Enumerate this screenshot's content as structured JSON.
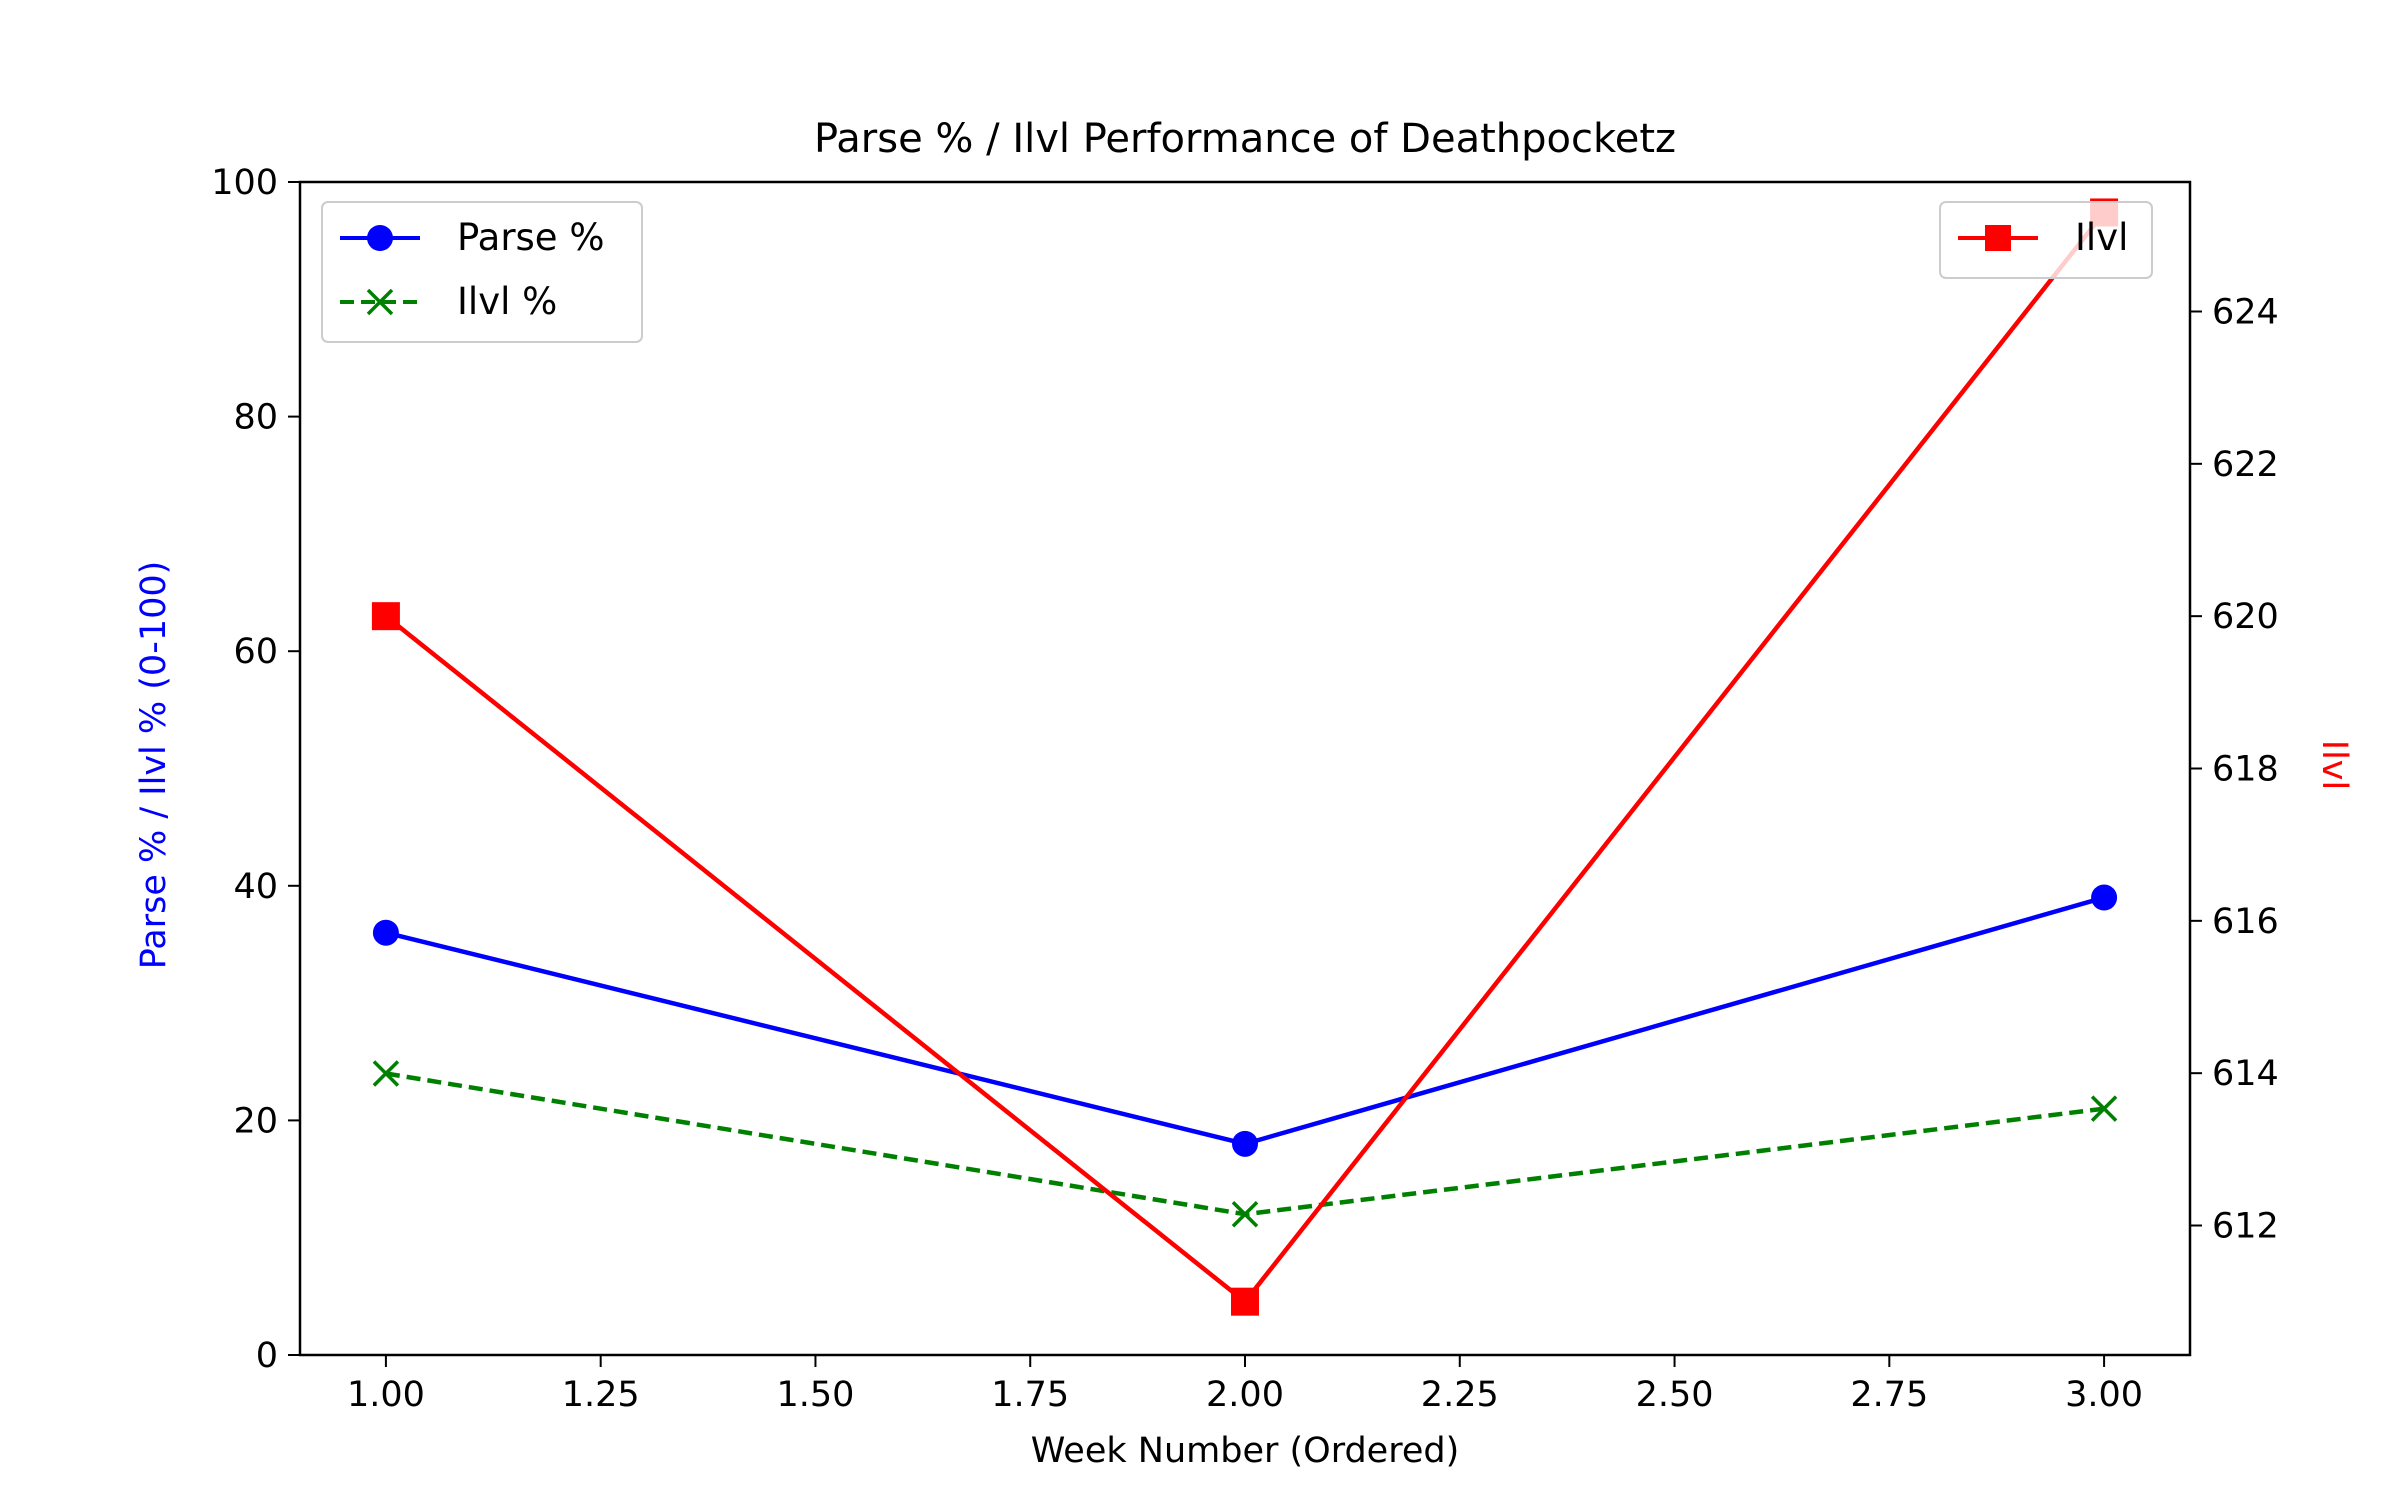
{
  "chart_data": {
    "type": "line",
    "title": "Parse % / Ilvl Performance of Deathpocketz",
    "xlabel": "Week Number (Ordered)",
    "ylabel_left": "Parse % / Ilvl % (0-100)",
    "ylabel_right": "Ilvl",
    "x": [
      1,
      2,
      3
    ],
    "xlim": [
      0.9,
      3.1
    ],
    "xticks": [
      "1.00",
      "1.25",
      "1.50",
      "1.75",
      "2.00",
      "2.25",
      "2.50",
      "2.75",
      "3.00"
    ],
    "ylim_left": [
      0,
      100
    ],
    "yticks_left": [
      "0",
      "20",
      "40",
      "60",
      "80",
      "100"
    ],
    "ylim_right": [
      610.3,
      625.7
    ],
    "yticks_right": [
      "612",
      "614",
      "616",
      "618",
      "620",
      "622",
      "624"
    ],
    "grid": false,
    "series": [
      {
        "name": "Parse %",
        "axis": "left",
        "values": [
          36,
          18,
          39
        ],
        "color": "#0000ff",
        "marker": "circle",
        "linestyle": "solid"
      },
      {
        "name": "Ilvl %",
        "axis": "left",
        "values": [
          24,
          12,
          21
        ],
        "color": "#008000",
        "marker": "x",
        "linestyle": "dashed"
      },
      {
        "name": "Ilvl",
        "axis": "right",
        "values": [
          620,
          611,
          625.3
        ],
        "color": "#ff0000",
        "marker": "square",
        "linestyle": "solid"
      }
    ],
    "legend_left_placement": "upper-left",
    "legend_right_placement": "upper-right",
    "colors": {
      "left_axis_label": "#0000ff",
      "right_axis_label": "#ff0000",
      "axes": "#000000"
    }
  }
}
